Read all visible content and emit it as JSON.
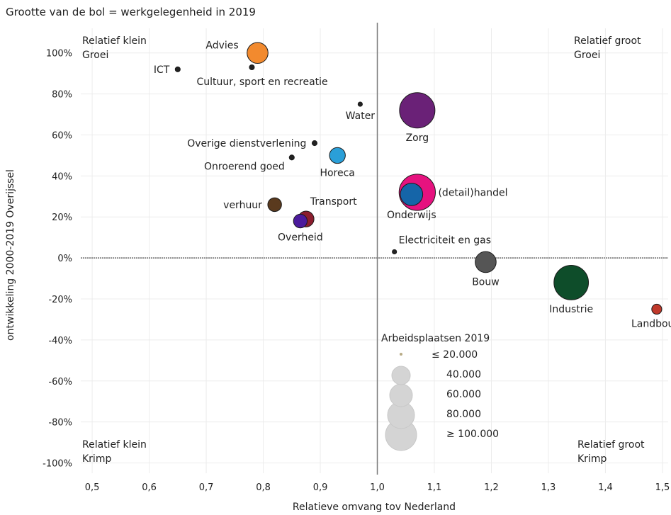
{
  "chart_data": {
    "type": "scatter",
    "subtitle": "Grootte van de bol = werkgelegenheid in 2019",
    "xlabel": "Relatieve omvang tov Nederland",
    "ylabel": "ontwikkeling 2000-2019 Overijssel",
    "xlim": [
      0.48,
      1.51
    ],
    "ylim": [
      -1.05,
      1.12
    ],
    "x_ticks": [
      0.5,
      0.6,
      0.7,
      0.8,
      0.9,
      1.0,
      1.1,
      1.2,
      1.3,
      1.4,
      1.5
    ],
    "x_tick_labels": [
      "0,5",
      "0,6",
      "0,7",
      "0,8",
      "0,9",
      "1,0",
      "1,1",
      "1,2",
      "1,3",
      "1,4",
      "1,5"
    ],
    "y_ticks": [
      1.0,
      0.8,
      0.6,
      0.4,
      0.2,
      0.0,
      -0.2,
      -0.4,
      -0.6,
      -0.8,
      -1.0
    ],
    "y_tick_labels": [
      "100%",
      "80%",
      "60%",
      "40%",
      "20%",
      "0%",
      "-20%",
      "-40%",
      "-60%",
      "-80%",
      "-100%"
    ],
    "grid": true,
    "reference_lines": {
      "x": 1.0,
      "y": 0.0
    },
    "quadrant_labels": {
      "top_left": [
        "Relatief klein",
        "Groei"
      ],
      "top_right": [
        "Relatief groot",
        "Groei"
      ],
      "bottom_left": [
        "Relatief klein",
        "Krimp"
      ],
      "bottom_right": [
        "Relatief groot",
        "Krimp"
      ]
    },
    "points": [
      {
        "label": "Advies",
        "x": 0.79,
        "y": 1.0,
        "jobs": 35000,
        "color": "#f28a2e",
        "label_pos": "left-up"
      },
      {
        "label": "ICT",
        "x": 0.65,
        "y": 0.92,
        "jobs": 2000,
        "color": "#222222",
        "label_pos": "left"
      },
      {
        "label": "Cultuur, sport en recreatie",
        "x": 0.78,
        "y": 0.93,
        "jobs": 2000,
        "color": "#222222",
        "label_pos": "below-right"
      },
      {
        "label": "Water",
        "x": 0.97,
        "y": 0.75,
        "jobs": 1500,
        "color": "#222222",
        "label_pos": "below"
      },
      {
        "label": "Zorg",
        "x": 1.07,
        "y": 0.72,
        "jobs": 100000,
        "color": "#6a2177",
        "label_pos": "below"
      },
      {
        "label": "Overige dienstverlening",
        "x": 0.89,
        "y": 0.56,
        "jobs": 2000,
        "color": "#222222",
        "label_pos": "left"
      },
      {
        "label": "Horeca",
        "x": 0.93,
        "y": 0.5,
        "jobs": 20000,
        "color": "#2a9fd8",
        "label_pos": "below"
      },
      {
        "label": "Onroerend goed",
        "x": 0.85,
        "y": 0.49,
        "jobs": 2000,
        "color": "#222222",
        "label_pos": "below-left"
      },
      {
        "label": "(detail)handel",
        "x": 1.07,
        "y": 0.32,
        "jobs": 105000,
        "color": "#e6127f",
        "label_pos": "right"
      },
      {
        "label": "Onderwijs",
        "x": 1.06,
        "y": 0.31,
        "jobs": 40000,
        "color": "#1565a8",
        "label_pos": "below"
      },
      {
        "label": "verhuur",
        "x": 0.82,
        "y": 0.26,
        "jobs": 15000,
        "color": "#5a3a1e",
        "label_pos": "left"
      },
      {
        "label": "Transport",
        "x": 0.875,
        "y": 0.19,
        "jobs": 20000,
        "color": "#8b1d2e",
        "label_pos": "above-right"
      },
      {
        "label": "Overheid",
        "x": 0.865,
        "y": 0.18,
        "jobs": 15000,
        "color": "#4b1a9c",
        "label_pos": "below"
      },
      {
        "label": "Electriciteit en gas",
        "x": 1.03,
        "y": 0.03,
        "jobs": 1500,
        "color": "#222222",
        "label_pos": "above-right"
      },
      {
        "label": "Bouw",
        "x": 1.19,
        "y": -0.02,
        "jobs": 35000,
        "color": "#555555",
        "label_pos": "below"
      },
      {
        "label": "Industrie",
        "x": 1.34,
        "y": -0.12,
        "jobs": 95000,
        "color": "#0e4d2a",
        "label_pos": "below"
      },
      {
        "label": "Landbouw",
        "x": 1.49,
        "y": -0.25,
        "jobs": 8000,
        "color": "#c0392b",
        "label_pos": "below"
      }
    ],
    "size_legend": {
      "title": "Arbeidsplaatsen 2019",
      "entries": [
        "≤ 20.000",
        "40.000",
        "60.000",
        "80.000",
        "≥ 100.000"
      ]
    }
  }
}
